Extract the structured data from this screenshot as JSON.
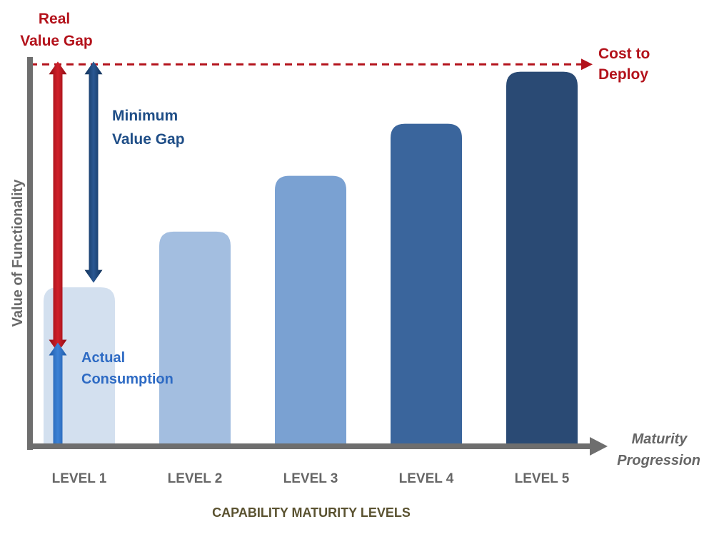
{
  "chart_data": {
    "type": "bar",
    "title": "",
    "xlabel": "CAPABILITY MATURITY LEVELS",
    "ylabel": "Value of Functionality",
    "x_axis_end_label": [
      "Maturity",
      "Progression"
    ],
    "categories": [
      "LEVEL 1",
      "LEVEL 2",
      "LEVEL 3",
      "LEVEL 4",
      "LEVEL 5"
    ],
    "values": [
      42,
      57,
      72,
      86,
      100
    ],
    "ylim": [
      0,
      103
    ],
    "grid": false,
    "bar_colors": [
      "#d3e0ef",
      "#a3bee0",
      "#7aa1d2",
      "#3a659c",
      "#2a4a74"
    ],
    "reference_line": {
      "label": [
        "Cost to",
        "Deploy"
      ],
      "value": 102,
      "color": "#b3121b",
      "style": "dashed"
    },
    "annotations": {
      "real_value_gap": {
        "label": [
          "Real",
          "Value Gap"
        ],
        "from": 26,
        "to": 102,
        "color": "#b3121b"
      },
      "minimum_value_gap": {
        "label": [
          "Minimum",
          "Value Gap"
        ],
        "from": 44,
        "to": 102,
        "color": "#133e70"
      },
      "actual_consumption": {
        "label": [
          "Actual",
          "Consumption"
        ],
        "from": 0,
        "to": 26,
        "color": "#2e6bc4"
      }
    }
  },
  "colors": {
    "axis": "#6e6e6e",
    "red": "#b3121b",
    "navy": "#1f4e87",
    "blue": "#2e6bc4"
  }
}
